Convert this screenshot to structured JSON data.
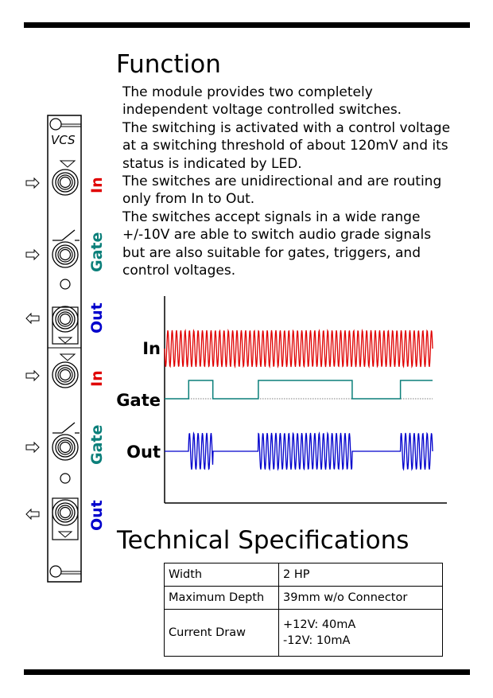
{
  "function_title": "Function",
  "paragraph": [
    "The module provides two completely",
    "independent voltage controlled switches.",
    "The switching is activated with a control voltage",
    "at a switching threshold of about 120mV and its",
    "status is indicated by LED.",
    "The switches are unidirectional and are routing",
    "only from In to Out.",
    "The switches accept signals in a wide range",
    "+/-10V are able to switch audio grade signals",
    "but are also suitable for gates, triggers, and",
    "control voltages."
  ],
  "panel": {
    "name": "VCS",
    "jack_labels": [
      "In",
      "Gate",
      "Out",
      "In",
      "Gate",
      "Out"
    ]
  },
  "diagram": {
    "signal_labels": [
      "In",
      "Gate",
      "Out"
    ],
    "gate_pattern": [
      {
        "t": 0.0,
        "high": false
      },
      {
        "t": 0.09,
        "high": true
      },
      {
        "t": 0.18,
        "high": false
      },
      {
        "t": 0.35,
        "high": true
      },
      {
        "t": 0.7,
        "high": false
      },
      {
        "t": 0.88,
        "high": true
      },
      {
        "t": 1.0,
        "high": true
      }
    ]
  },
  "colors": {
    "in": "#e00000",
    "gate": "#0b7f7a",
    "out": "#0000cc"
  },
  "spec_title": "Technical Specifications",
  "specs": {
    "width_label": "Width",
    "width_value": "2 HP",
    "depth_label": "Maximum Depth",
    "depth_value": "39mm w/o Connector",
    "current_label": "Current Draw",
    "current_value_1": "+12V: 40mA",
    "current_value_2": "-12V:  10mA"
  }
}
